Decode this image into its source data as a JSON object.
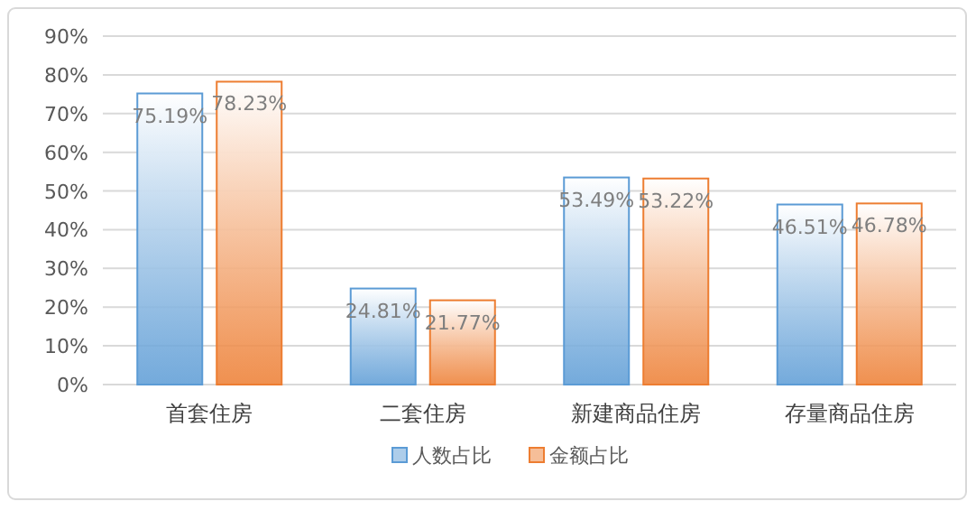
{
  "chart_data": {
    "type": "bar",
    "categories": [
      "首套住房",
      "二套住房",
      "新建商品住房",
      "存量商品住房"
    ],
    "series": [
      {
        "name": "人数占比",
        "color": "#5b9bd5",
        "values": [
          75.19,
          24.81,
          53.49,
          46.51
        ],
        "value_labels": [
          "75.19%",
          "24.81%",
          "53.49%",
          "46.51%"
        ]
      },
      {
        "name": "金额占比",
        "color": "#ed7d31",
        "values": [
          78.23,
          21.77,
          53.22,
          46.78
        ],
        "value_labels": [
          "78.23%",
          "21.77%",
          "53.22%",
          "46.78%"
        ]
      }
    ],
    "ylim": [
      0,
      90
    ],
    "yticks": [
      {
        "value": 0,
        "label": "0%"
      },
      {
        "value": 10,
        "label": "10%"
      },
      {
        "value": 20,
        "label": "20%"
      },
      {
        "value": 30,
        "label": "30%"
      },
      {
        "value": 40,
        "label": "40%"
      },
      {
        "value": 50,
        "label": "50%"
      },
      {
        "value": 60,
        "label": "60%"
      },
      {
        "value": 70,
        "label": "70%"
      },
      {
        "value": 80,
        "label": "80%"
      },
      {
        "value": 90,
        "label": "90%"
      }
    ],
    "grid": "y",
    "legend": "bottom"
  }
}
